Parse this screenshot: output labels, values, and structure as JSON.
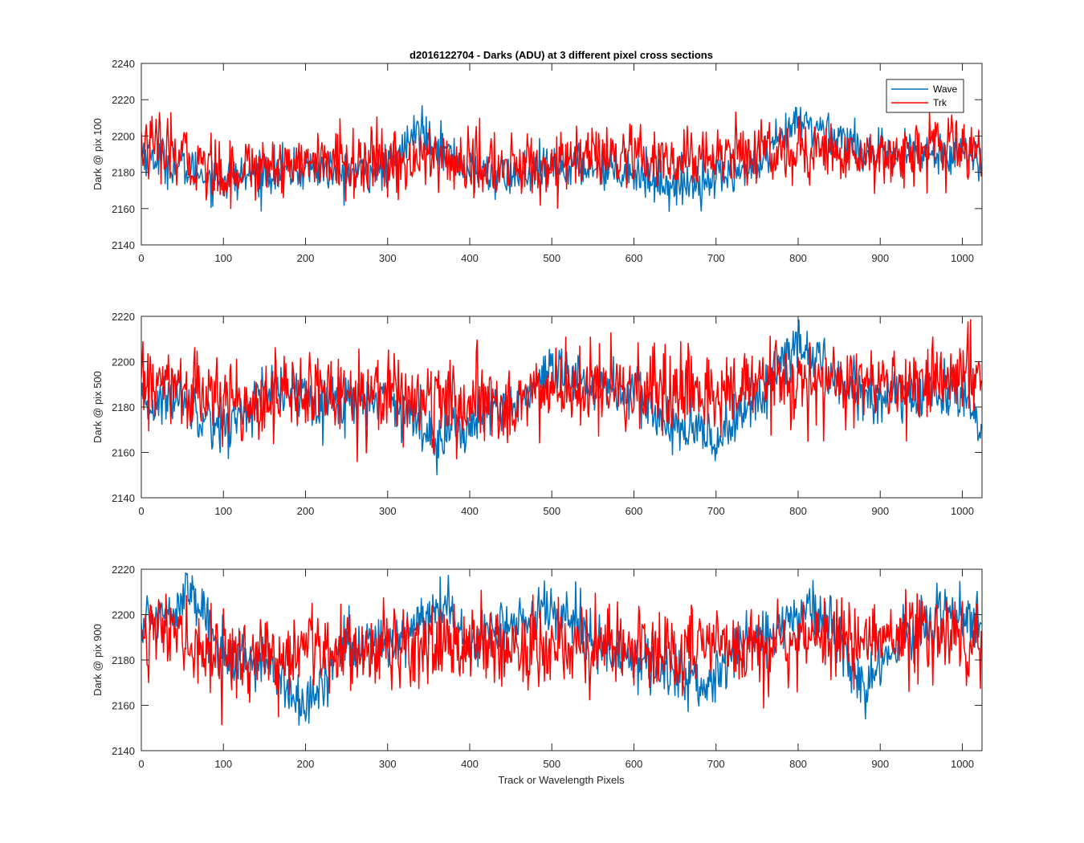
{
  "figure": {
    "title": "d2016122704 - Darks (ADU) at 3 different pixel cross sections",
    "xlabel": "Track or Wavelength Pixels"
  },
  "colors": {
    "wave": "#0072BD",
    "trk": "#FF0000",
    "axis": "#262626"
  },
  "legend": {
    "location": "top-right of first panel",
    "entries": [
      "Wave",
      "Trk"
    ]
  },
  "chart_data": [
    {
      "type": "line",
      "ylabel": "Dark @ pix 100",
      "xlim": [
        0,
        1024
      ],
      "ylim": [
        2140,
        2240
      ],
      "xticks": [
        "0",
        "100",
        "200",
        "300",
        "400",
        "500",
        "600",
        "700",
        "800",
        "900",
        "1000"
      ],
      "yticks": [
        "2140",
        "2160",
        "2180",
        "2200",
        "2220",
        "2240"
      ],
      "grid": false,
      "series": [
        {
          "name": "Wave",
          "x": [
            0,
            50,
            100,
            150,
            200,
            250,
            300,
            340,
            400,
            450,
            500,
            550,
            600,
            650,
            700,
            750,
            800,
            850,
            900,
            950,
            1000,
            1023
          ],
          "y": [
            2192,
            2182,
            2176,
            2180,
            2182,
            2180,
            2182,
            2205,
            2180,
            2178,
            2182,
            2184,
            2180,
            2172,
            2178,
            2182,
            2208,
            2200,
            2188,
            2190,
            2192,
            2184
          ]
        },
        {
          "name": "Trk",
          "x": [
            0,
            50,
            100,
            150,
            200,
            250,
            300,
            350,
            400,
            450,
            500,
            550,
            600,
            650,
            700,
            750,
            800,
            850,
            900,
            950,
            1000,
            1023
          ],
          "y": [
            2195,
            2188,
            2180,
            2184,
            2186,
            2185,
            2184,
            2188,
            2184,
            2182,
            2185,
            2188,
            2186,
            2184,
            2190,
            2192,
            2192,
            2190,
            2190,
            2192,
            2194,
            2190
          ]
        }
      ]
    },
    {
      "type": "line",
      "ylabel": "Dark @ pix 500",
      "xlim": [
        0,
        1024
      ],
      "ylim": [
        2140,
        2220
      ],
      "xticks": [
        "0",
        "100",
        "200",
        "300",
        "400",
        "500",
        "600",
        "700",
        "800",
        "900",
        "1000"
      ],
      "yticks": [
        "2140",
        "2160",
        "2180",
        "2200",
        "2220"
      ],
      "grid": false,
      "series": [
        {
          "name": "Wave",
          "x": [
            0,
            50,
            100,
            150,
            200,
            250,
            300,
            350,
            400,
            450,
            500,
            550,
            600,
            650,
            700,
            750,
            800,
            850,
            900,
            950,
            1000,
            1023
          ],
          "y": [
            2180,
            2186,
            2170,
            2186,
            2186,
            2182,
            2186,
            2168,
            2172,
            2180,
            2194,
            2190,
            2186,
            2170,
            2166,
            2184,
            2208,
            2190,
            2184,
            2186,
            2186,
            2172
          ]
        },
        {
          "name": "Trk",
          "x": [
            0,
            50,
            100,
            150,
            200,
            250,
            300,
            350,
            400,
            450,
            500,
            550,
            600,
            650,
            700,
            750,
            800,
            850,
            900,
            950,
            1000,
            1023
          ],
          "y": [
            2190,
            2188,
            2182,
            2184,
            2186,
            2186,
            2188,
            2182,
            2180,
            2182,
            2188,
            2188,
            2186,
            2184,
            2186,
            2190,
            2190,
            2190,
            2188,
            2190,
            2192,
            2194
          ]
        }
      ]
    },
    {
      "type": "line",
      "ylabel": "Dark @ pix 900",
      "xlim": [
        0,
        1024
      ],
      "ylim": [
        2140,
        2220
      ],
      "xticks": [
        "0",
        "100",
        "200",
        "300",
        "400",
        "500",
        "600",
        "700",
        "800",
        "900",
        "1000"
      ],
      "yticks": [
        "2140",
        "2160",
        "2180",
        "2200",
        "2220"
      ],
      "grid": false,
      "series": [
        {
          "name": "Wave",
          "x": [
            0,
            30,
            60,
            100,
            150,
            200,
            250,
            300,
            370,
            400,
            450,
            510,
            550,
            600,
            650,
            690,
            730,
            780,
            820,
            880,
            930,
            980,
            1023
          ],
          "y": [
            2195,
            2202,
            2210,
            2182,
            2180,
            2158,
            2186,
            2188,
            2204,
            2186,
            2198,
            2202,
            2188,
            2178,
            2176,
            2168,
            2188,
            2192,
            2206,
            2168,
            2190,
            2202,
            2194
          ]
        },
        {
          "name": "Trk",
          "x": [
            0,
            50,
            100,
            150,
            200,
            250,
            300,
            350,
            400,
            450,
            500,
            550,
            600,
            650,
            700,
            750,
            800,
            850,
            900,
            950,
            1000,
            1023
          ],
          "y": [
            2196,
            2188,
            2182,
            2180,
            2184,
            2186,
            2186,
            2188,
            2186,
            2184,
            2188,
            2186,
            2186,
            2182,
            2186,
            2188,
            2190,
            2190,
            2190,
            2192,
            2192,
            2190
          ]
        }
      ]
    }
  ]
}
